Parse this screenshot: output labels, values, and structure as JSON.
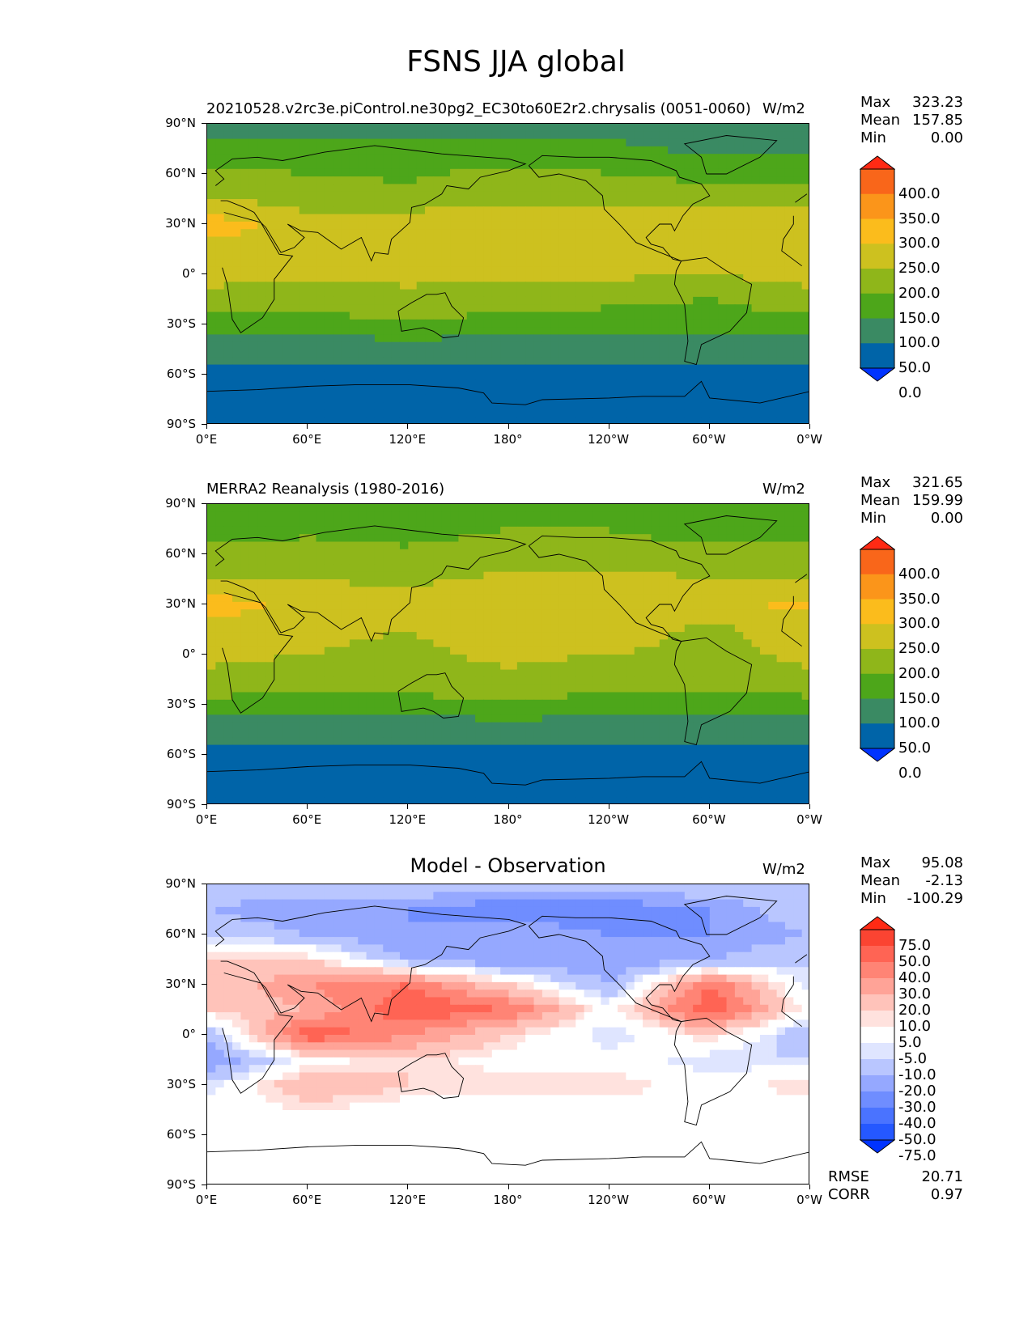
{
  "title": "FSNS JJA global",
  "colors": {
    "abs": [
      "#0033ff",
      "#0064a8",
      "#3a8a63",
      "#4da61a",
      "#8fb61a",
      "#cdc11f",
      "#fbbc1c",
      "#fb951a",
      "#f9661a",
      "#ff2a14"
    ],
    "diff": [
      "#0033ff",
      "#2558ff",
      "#4a73ff",
      "#6f8dff",
      "#95a8ff",
      "#b9c6ff",
      "#dfe5ff",
      "#ffffff",
      "#ffe2de",
      "#ffc3ba",
      "#ffa397",
      "#ff8475",
      "#ff6454",
      "#fb4432",
      "#ff2a14"
    ]
  },
  "axes": {
    "lat_ticks": [
      "90°N",
      "60°N",
      "30°N",
      "0°",
      "30°S",
      "60°S",
      "90°S"
    ],
    "lon_ticks": [
      "0°E",
      "60°E",
      "120°E",
      "180°",
      "120°W",
      "60°W",
      "0°W"
    ]
  },
  "panels": [
    {
      "id": "model",
      "title_left": "20210528.v2rc3e.piControl.ne30pg2_EC30to60E2r2.chrysalis (0051-0060)",
      "title_center": "",
      "units": "W/m2",
      "stats": {
        "max_label": "Max",
        "max": "323.23",
        "mean_label": "Mean",
        "mean": "157.85",
        "min_label": "Min",
        "min": "0.00"
      },
      "colorbar": {
        "levels": [
          "400.0",
          "350.0",
          "300.0",
          "250.0",
          "200.0",
          "150.0",
          "100.0",
          "50.0",
          "0.0"
        ]
      }
    },
    {
      "id": "obs",
      "title_left": "MERRA2 Reanalysis (1980-2016)",
      "title_center": "",
      "units": "W/m2",
      "stats": {
        "max_label": "Max",
        "max": "321.65",
        "mean_label": "Mean",
        "mean": "159.99",
        "min_label": "Min",
        "min": "0.00"
      },
      "colorbar": {
        "levels": [
          "400.0",
          "350.0",
          "300.0",
          "250.0",
          "200.0",
          "150.0",
          "100.0",
          "50.0",
          "0.0"
        ]
      }
    },
    {
      "id": "diff",
      "title_left": "",
      "title_center": "Model - Observation",
      "units": "W/m2",
      "stats": {
        "max_label": "Max",
        "max": "95.08",
        "mean_label": "Mean",
        "mean": "-2.13",
        "min_label": "Min",
        "min": "-100.29"
      },
      "colorbar": {
        "levels": [
          "75.0",
          "50.0",
          "40.0",
          "30.0",
          "20.0",
          "10.0",
          "5.0",
          "-5.0",
          "-10.0",
          "-20.0",
          "-30.0",
          "-40.0",
          "-50.0",
          "-75.0"
        ]
      },
      "metrics": {
        "rmse_label": "RMSE",
        "rmse": "20.71",
        "corr_label": "CORR",
        "corr": "0.97"
      }
    }
  ],
  "chart_data": [
    {
      "type": "heatmap",
      "title": "20210528.v2rc3e.piControl.ne30pg2_EC30to60E2r2.chrysalis (0051-0060)",
      "units": "W/m2",
      "levels": [
        0,
        50,
        100,
        150,
        200,
        250,
        300,
        350,
        400
      ],
      "xlim": [
        0,
        360
      ],
      "ylim": [
        -90,
        90
      ],
      "x": [
        0,
        60,
        120,
        180,
        240,
        300,
        360
      ],
      "y": [
        90,
        75,
        60,
        45,
        30,
        15,
        0,
        -15,
        -30,
        -45,
        -60,
        -75,
        -90
      ],
      "values": [
        [
          80,
          80,
          80,
          80,
          80,
          80,
          80
        ],
        [
          120,
          110,
          110,
          110,
          110,
          90,
          90
        ],
        [
          160,
          150,
          140,
          170,
          150,
          130,
          130
        ],
        [
          200,
          180,
          170,
          190,
          190,
          190,
          190
        ],
        [
          280,
          220,
          230,
          250,
          240,
          250,
          240
        ],
        [
          230,
          220,
          230,
          250,
          240,
          220,
          230
        ],
        [
          220,
          210,
          210,
          210,
          210,
          200,
          220
        ],
        [
          180,
          170,
          190,
          170,
          160,
          150,
          180
        ],
        [
          130,
          130,
          140,
          130,
          130,
          120,
          130
        ],
        [
          70,
          70,
          70,
          70,
          70,
          70,
          70
        ],
        [
          30,
          30,
          30,
          30,
          30,
          30,
          30
        ],
        [
          20,
          20,
          20,
          20,
          20,
          20,
          20
        ],
        [
          0,
          0,
          0,
          0,
          0,
          0,
          0
        ]
      ],
      "max": 323.23,
      "mean": 157.85,
      "min": 0.0
    },
    {
      "type": "heatmap",
      "title": "MERRA2 Reanalysis (1980-2016)",
      "units": "W/m2",
      "levels": [
        0,
        50,
        100,
        150,
        200,
        250,
        300,
        350,
        400
      ],
      "xlim": [
        0,
        360
      ],
      "ylim": [
        -90,
        90
      ],
      "x": [
        0,
        60,
        120,
        180,
        240,
        300,
        360
      ],
      "y": [
        90,
        75,
        60,
        45,
        30,
        15,
        0,
        -15,
        -30,
        -45,
        -60,
        -75,
        -90
      ],
      "values": [
        [
          110,
          110,
          110,
          110,
          110,
          100,
          100
        ],
        [
          130,
          140,
          130,
          150,
          150,
          110,
          110
        ],
        [
          170,
          170,
          160,
          180,
          180,
          180,
          180
        ],
        [
          200,
          200,
          190,
          210,
          210,
          200,
          200
        ],
        [
          280,
          230,
          220,
          250,
          240,
          240,
          260
        ],
        [
          230,
          210,
          200,
          230,
          220,
          190,
          220
        ],
        [
          210,
          200,
          190,
          210,
          200,
          190,
          210
        ],
        [
          190,
          180,
          180,
          190,
          170,
          170,
          190
        ],
        [
          130,
          130,
          130,
          140,
          130,
          120,
          130
        ],
        [
          70,
          70,
          70,
          70,
          70,
          70,
          70
        ],
        [
          30,
          30,
          30,
          30,
          30,
          30,
          30
        ],
        [
          20,
          20,
          20,
          20,
          20,
          20,
          20
        ],
        [
          0,
          0,
          0,
          0,
          0,
          0,
          0
        ]
      ],
      "max": 321.65,
      "mean": 159.99,
      "min": 0.0
    },
    {
      "type": "heatmap",
      "title": "Model - Observation",
      "units": "W/m2",
      "levels": [
        -75,
        -50,
        -40,
        -30,
        -20,
        -10,
        -5,
        5,
        10,
        20,
        30,
        40,
        50,
        75
      ],
      "xlim": [
        0,
        360
      ],
      "ylim": [
        -90,
        90
      ],
      "x": [
        0,
        60,
        120,
        180,
        240,
        300,
        360
      ],
      "y": [
        90,
        75,
        60,
        45,
        30,
        15,
        0,
        -15,
        -30,
        -45,
        -60,
        -75,
        -90
      ],
      "values": [
        [
          -10,
          -10,
          -10,
          -10,
          -10,
          -10,
          -10
        ],
        [
          -20,
          -30,
          -30,
          -40,
          -40,
          -30,
          -10
        ],
        [
          -10,
          -20,
          -30,
          -20,
          -30,
          -30,
          -20
        ],
        [
          10,
          10,
          -20,
          -30,
          -30,
          -20,
          -10
        ],
        [
          10,
          30,
          40,
          10,
          -20,
          40,
          -10
        ],
        [
          10,
          20,
          50,
          40,
          0,
          50,
          0
        ],
        [
          -20,
          50,
          30,
          10,
          -10,
          10,
          -20
        ],
        [
          -30,
          0,
          10,
          0,
          0,
          -10,
          -10
        ],
        [
          -10,
          20,
          10,
          10,
          10,
          0,
          10
        ],
        [
          0,
          5,
          0,
          0,
          0,
          0,
          0
        ],
        [
          0,
          0,
          0,
          0,
          0,
          0,
          0
        ],
        [
          0,
          0,
          0,
          0,
          0,
          0,
          0
        ],
        [
          0,
          0,
          0,
          0,
          0,
          0,
          0
        ]
      ],
      "max": 95.08,
      "mean": -2.13,
      "min": -100.29,
      "rmse": 20.71,
      "corr": 0.97
    }
  ]
}
